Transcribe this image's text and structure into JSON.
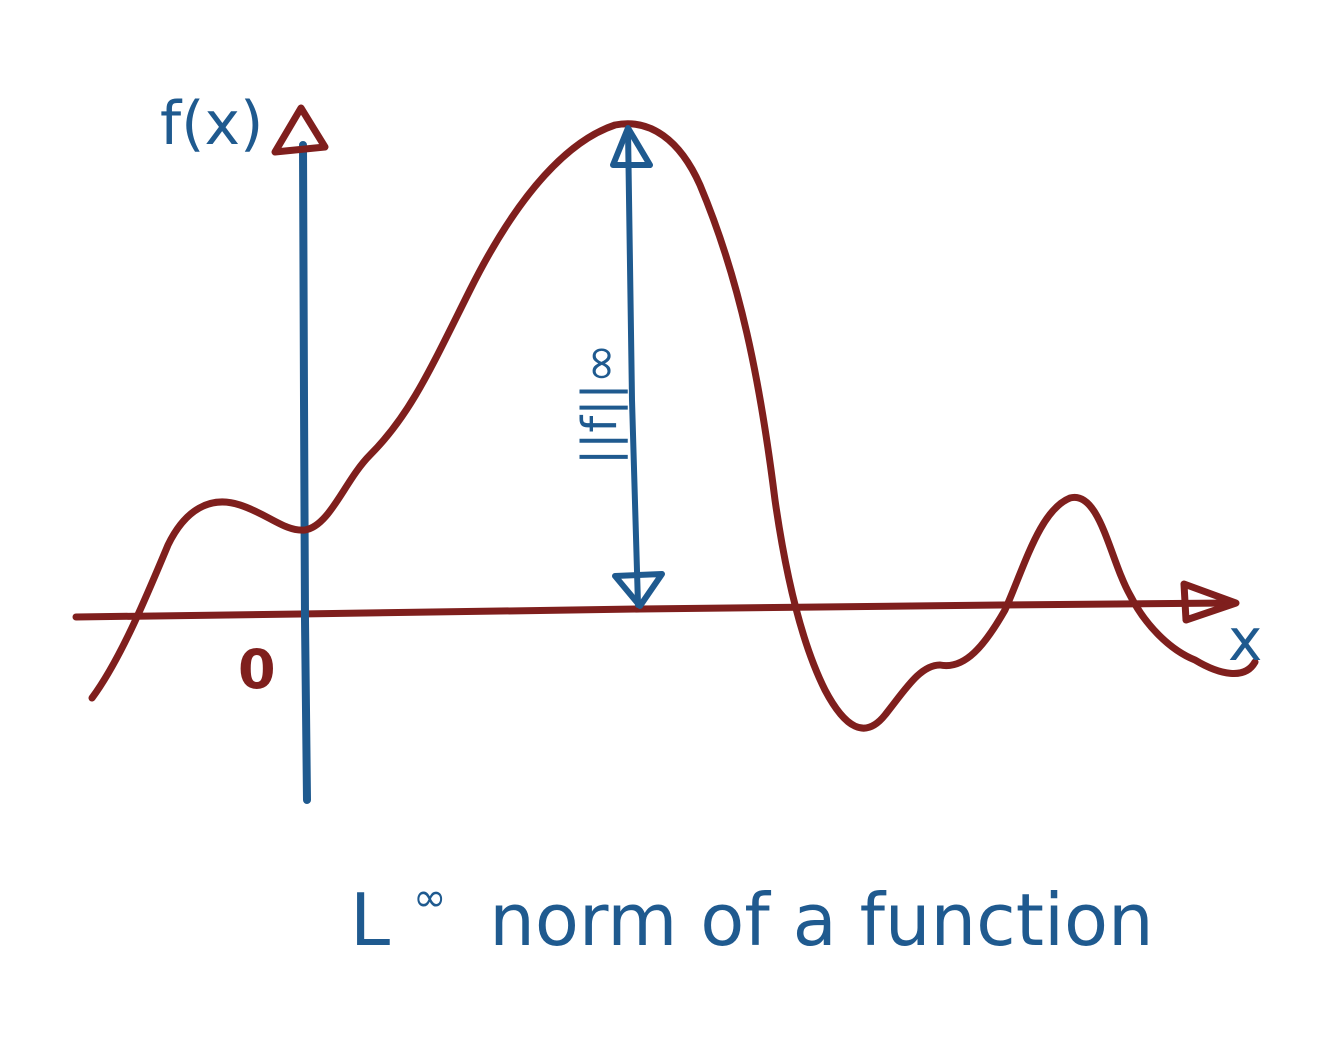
{
  "colors": {
    "curve": "#7f1f1d",
    "axis_y": "#1f5a8f",
    "axis_x": "#7f1f1d",
    "label_blue": "#1f5a8f",
    "label_red": "#7f1f1d",
    "background": "#ffffff"
  },
  "labels": {
    "y_axis": "f(x)",
    "x_axis": "x",
    "origin": "0",
    "norm": "||f||∞",
    "caption_prefix": "L",
    "caption_sup": "∞",
    "caption_rest": "norm of a function"
  }
}
